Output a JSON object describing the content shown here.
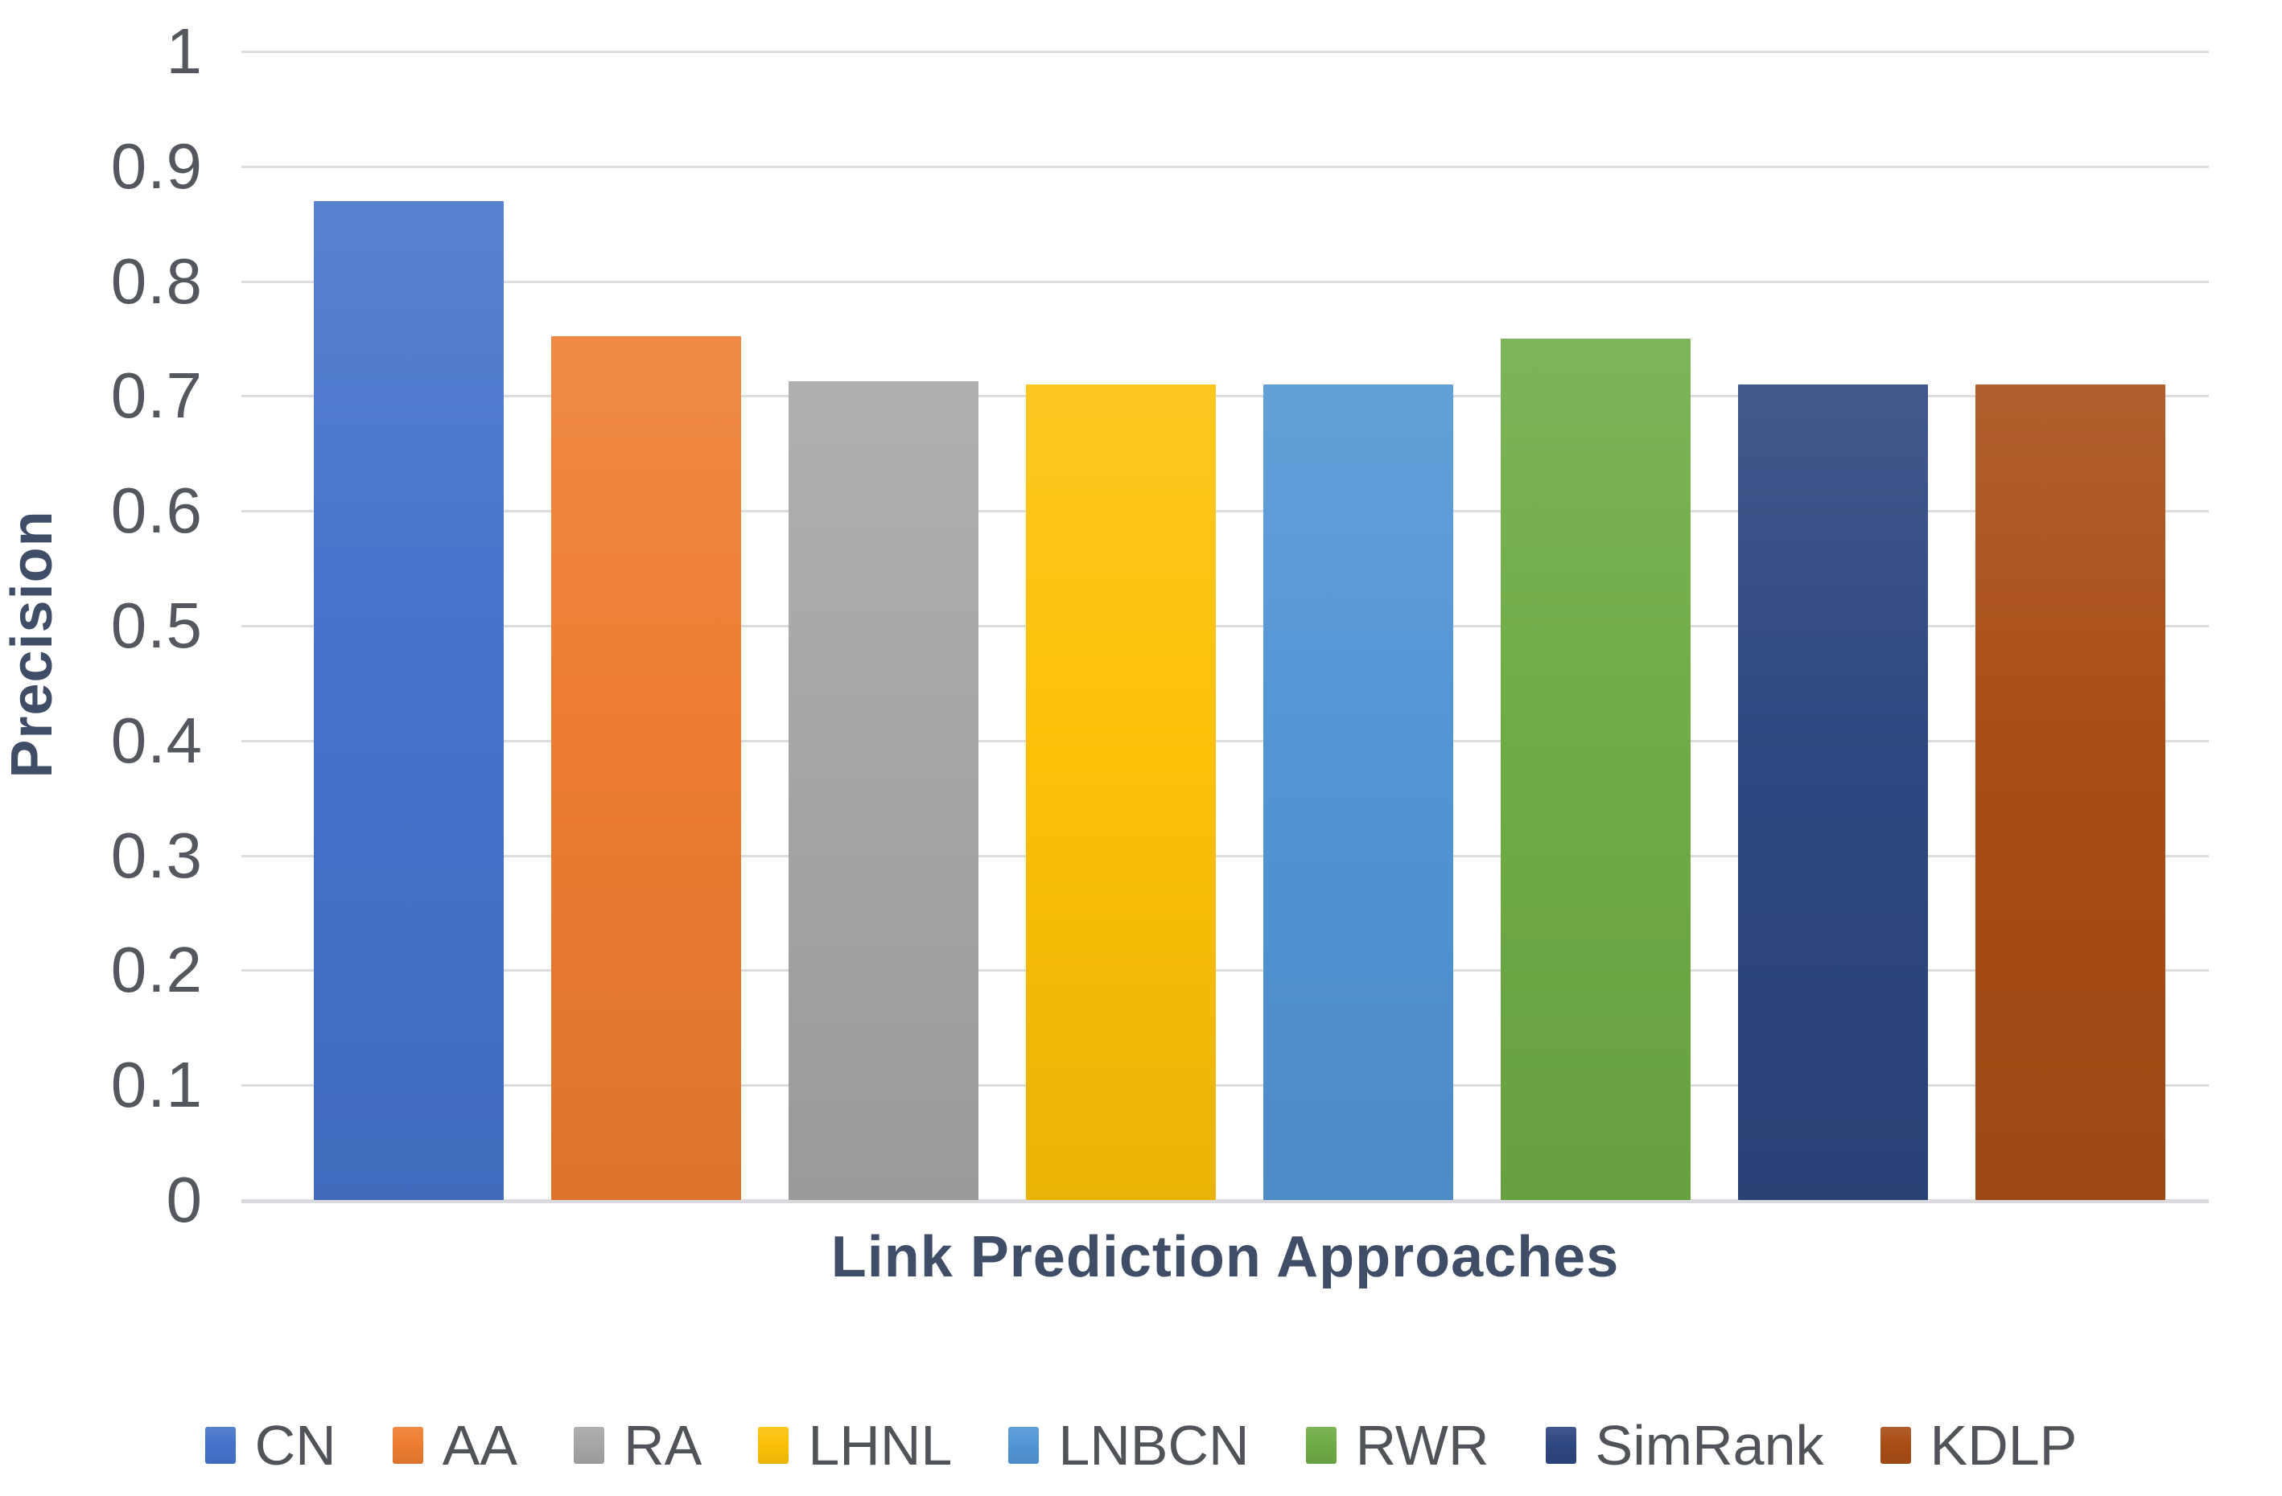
{
  "chart_data": {
    "type": "bar",
    "title": "",
    "xlabel": "Link Prediction Approaches",
    "ylabel": "Precision",
    "ylim": [
      0,
      1
    ],
    "ytick_labels": [
      "1",
      "0.9",
      "0.8",
      "0.7",
      "0.6",
      "0.5",
      "0.4",
      "0.3",
      "0.2",
      "0.1",
      "0"
    ],
    "grid": true,
    "legend_position": "bottom",
    "categories": [
      "CN",
      "AA",
      "RA",
      "LHNL",
      "LNBCN",
      "RWR",
      "SimRank",
      "KDLP"
    ],
    "values": [
      0.87,
      0.752,
      0.713,
      0.71,
      0.71,
      0.75,
      0.71,
      0.71
    ],
    "bar_colors": [
      "#4573CB",
      "#ED7D31",
      "#A6A6A6",
      "#FCC107",
      "#5295D5",
      "#6FAC46",
      "#2E4780",
      "#A94D16"
    ]
  },
  "colors": {
    "background": "#FFFFFF",
    "gridline": "#DBDBE0",
    "axis_line": "#D9D9DE",
    "tick_label": "#54585E",
    "axis_title": "#3F4E66",
    "legend_text": "#505459"
  }
}
